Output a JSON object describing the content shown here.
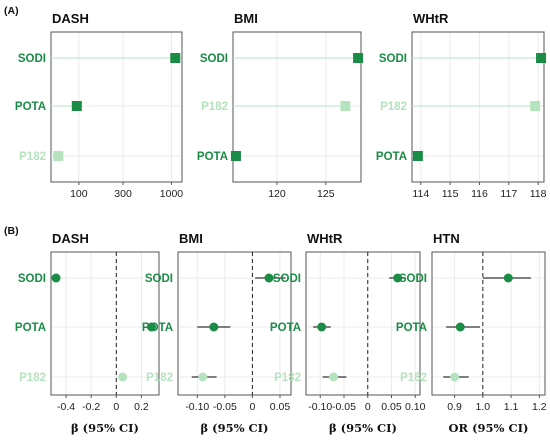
{
  "figure": {
    "section_a_label": "(A)",
    "section_b_label": "(B)"
  },
  "colors": {
    "SODI": "#1a8c45",
    "POTA": "#1a8c45",
    "P182": "#b5e3bd",
    "lollipop": "#c8e6cf",
    "ci": "#333333",
    "grid": "#ebebeb"
  },
  "chart_data": [
    {
      "panel": "A",
      "type": "lollipop",
      "title": "DASH",
      "categories": [
        "SODI",
        "POTA",
        "P182"
      ],
      "values": [
        1100,
        95,
        60
      ],
      "scale": "log",
      "xlim": [
        50,
        1300
      ],
      "xticks": [
        100,
        300,
        1000
      ],
      "xtick_labels": [
        "100",
        "300",
        "1000"
      ]
    },
    {
      "panel": "A",
      "type": "lollipop",
      "title": "BMI",
      "categories": [
        "SODI",
        "P182",
        "POTA"
      ],
      "values": [
        128.3,
        127.0,
        115.8
      ],
      "xlim": [
        115.5,
        128.6
      ],
      "xticks": [
        120,
        125
      ],
      "xtick_labels": [
        "120",
        "125"
      ]
    },
    {
      "panel": "A",
      "type": "lollipop",
      "title": "WHtR",
      "categories": [
        "SODI",
        "P182",
        "POTA"
      ],
      "values": [
        118.1,
        117.9,
        113.9
      ],
      "xlim": [
        113.7,
        118.2
      ],
      "xticks": [
        114,
        115,
        116,
        117,
        118
      ],
      "xtick_labels": [
        "114",
        "115",
        "116",
        "117",
        "118"
      ]
    },
    {
      "panel": "B",
      "type": "forest",
      "title": "DASH",
      "categories": [
        "SODI",
        "POTA",
        "P182"
      ],
      "estimates": [
        -0.48,
        0.28,
        0.05
      ],
      "ci_low": [
        null,
        null,
        null
      ],
      "ci_high": [
        null,
        null,
        null
      ],
      "reference": 0,
      "xlim": [
        -0.52,
        0.34
      ],
      "xticks": [
        -0.4,
        -0.2,
        0,
        0.2
      ],
      "xtick_labels": [
        "-0.4",
        "-0.2",
        "0",
        "0.2"
      ],
      "xlabel": "β (95% CI)"
    },
    {
      "panel": "B",
      "type": "forest",
      "title": "BMI",
      "categories": [
        "SODI",
        "POTA",
        "P182"
      ],
      "estimates": [
        0.03,
        -0.07,
        -0.09
      ],
      "ci_low": [
        0.005,
        -0.1,
        -0.11
      ],
      "ci_high": [
        0.06,
        -0.04,
        -0.065
      ],
      "reference": 0,
      "xlim": [
        -0.135,
        0.07
      ],
      "xticks": [
        -0.1,
        -0.05,
        0,
        0.05
      ],
      "xtick_labels": [
        "-0.10",
        "-0.05",
        "0",
        "0.05"
      ],
      "xlabel": "β (95% CI)"
    },
    {
      "panel": "B",
      "type": "forest",
      "title": "WHtR",
      "categories": [
        "SODI",
        "POTA",
        "P182"
      ],
      "estimates": [
        0.063,
        -0.097,
        -0.072
      ],
      "ci_low": [
        0.045,
        -0.115,
        -0.095
      ],
      "ci_high": [
        0.08,
        -0.078,
        -0.045
      ],
      "reference": 0,
      "xlim": [
        -0.13,
        0.11
      ],
      "xticks": [
        -0.1,
        -0.05,
        0,
        0.05,
        0.1
      ],
      "xtick_labels": [
        "-0.10",
        "-0.05",
        "0",
        "0.05",
        "0.10"
      ],
      "xlabel": "β (95% CI)"
    },
    {
      "panel": "B",
      "type": "forest",
      "title": "HTN",
      "categories": [
        "SODI",
        "POTA",
        "P182"
      ],
      "estimates": [
        1.09,
        0.92,
        0.9
      ],
      "ci_low": [
        1.0,
        0.87,
        0.86
      ],
      "ci_high": [
        1.17,
        0.99,
        0.95
      ],
      "reference": 1,
      "xlim": [
        0.82,
        1.22
      ],
      "xticks": [
        0.9,
        1.0,
        1.1,
        1.2
      ],
      "xtick_labels": [
        "0.9",
        "1.0",
        "1.1",
        "1.2"
      ],
      "xlabel": "OR (95% CI)"
    }
  ]
}
